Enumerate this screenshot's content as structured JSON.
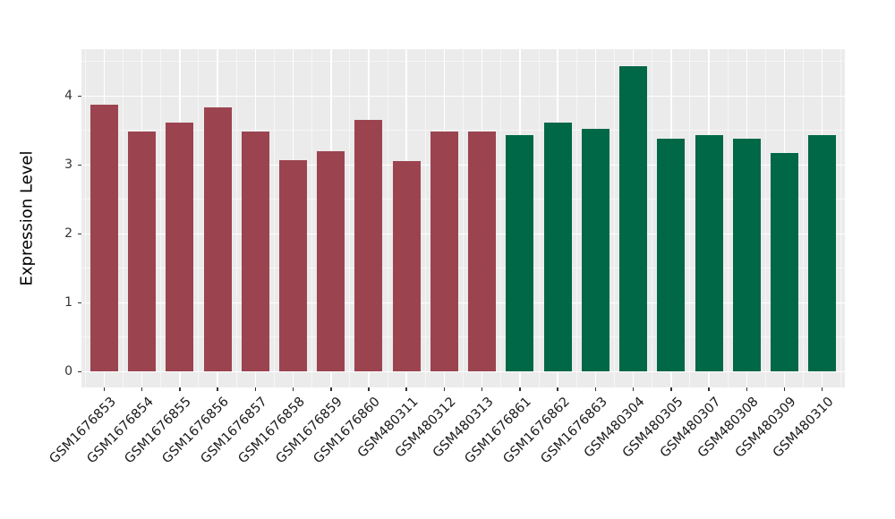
{
  "chart_data": {
    "type": "bar",
    "title": "",
    "xlabel": "",
    "ylabel": "Expression Level",
    "categories": [
      "GSM1676853",
      "GSM1676854",
      "GSM1676855",
      "GSM1676856",
      "GSM1676857",
      "GSM1676858",
      "GSM1676859",
      "GSM1676860",
      "GSM480311",
      "GSM480312",
      "GSM480313",
      "GSM1676861",
      "GSM1676862",
      "GSM1676863",
      "GSM480304",
      "GSM480305",
      "GSM480307",
      "GSM480308",
      "GSM480309",
      "GSM480310"
    ],
    "values": [
      3.88,
      3.48,
      3.61,
      3.84,
      3.49,
      3.07,
      3.2,
      3.65,
      3.06,
      3.49,
      3.48,
      3.43,
      3.61,
      3.52,
      4.44,
      3.38,
      3.44,
      3.38,
      3.18,
      3.44
    ],
    "bar_groups": [
      0,
      0,
      0,
      0,
      0,
      0,
      0,
      0,
      0,
      0,
      0,
      1,
      1,
      1,
      1,
      1,
      1,
      1,
      1,
      1
    ],
    "group_colors": [
      "#9B4450",
      "#006747"
    ],
    "yticks": [
      0,
      1,
      2,
      3,
      4
    ],
    "ylim": [
      -0.23,
      4.68
    ],
    "grid": "major and minor, white on gray panel",
    "legend_position": "none"
  },
  "colors": {
    "figure_background": "#FFFFFF",
    "panel_background": "#EBEBEB",
    "gridline_major": "#FFFFFF",
    "gridline_minor": "rgba(255,255,255,0.55)",
    "bar_maroon": "#9B4450",
    "bar_green": "#006747",
    "axis_text": "#333333",
    "x_axis_text": "#1A1A1A",
    "tick_mark": "#333333",
    "axis_title": "#000000"
  }
}
